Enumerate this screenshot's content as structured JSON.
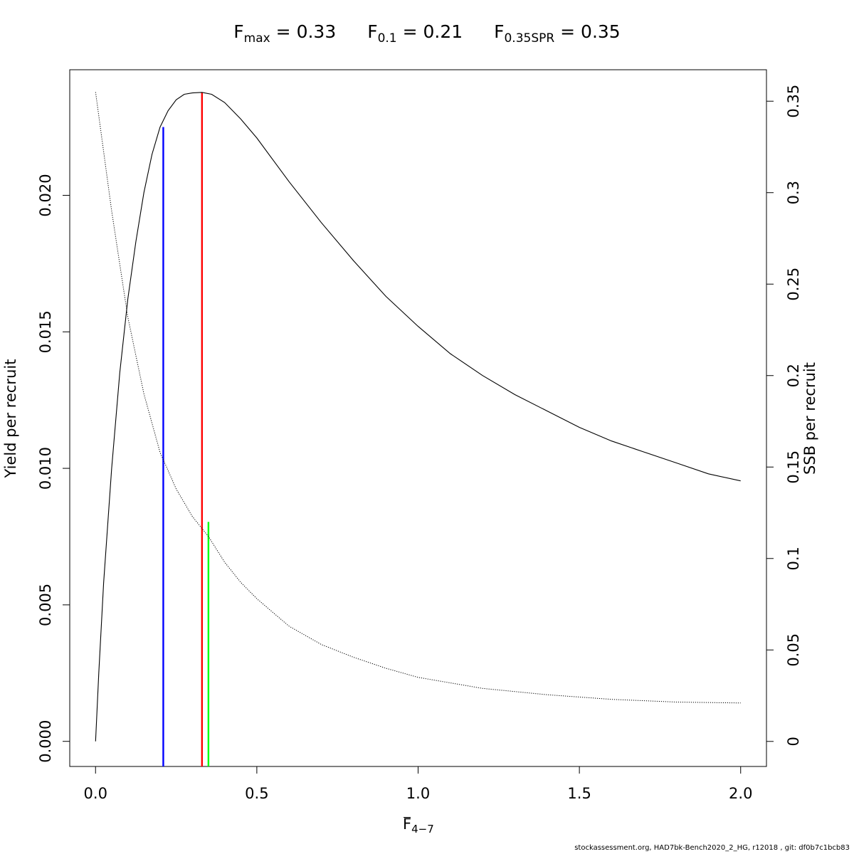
{
  "title": {
    "fmax": {
      "symbol": "F",
      "sub": "max",
      "value": "= 0.33"
    },
    "f01": {
      "symbol": "F",
      "sub": "0.1",
      "value": "= 0.21"
    },
    "fspr": {
      "symbol": "F",
      "sub": "0.35SPR",
      "value": "= 0.35"
    }
  },
  "footer": "stockassessment.org, HAD7bk-Bench2020_2_HG, r12018 , git: df0b7c1bcb83",
  "chart_data": {
    "type": "line",
    "xlabel": {
      "symbol": "F",
      "sub": "4−7"
    },
    "ylabel_left": "Yield per recruit",
    "ylabel_right": "SSB per recruit",
    "xlim": [
      -0.08,
      2.08
    ],
    "ylim_left": [
      -0.00092,
      0.0246
    ],
    "ylim_right": [
      -0.0137,
      0.3672
    ],
    "x_ticks": [
      0.0,
      0.5,
      1.0,
      1.5,
      2.0
    ],
    "x_tick_labels": [
      "0.0",
      "0.5",
      "1.0",
      "1.5",
      "2.0"
    ],
    "y_left_ticks": [
      0.0,
      0.005,
      0.01,
      0.015,
      0.02
    ],
    "y_left_tick_labels": [
      "0.000",
      "0.005",
      "0.010",
      "0.015",
      "0.020"
    ],
    "y_right_ticks": [
      0,
      0.05,
      0.1,
      0.15,
      0.2,
      0.25,
      0.3,
      0.35
    ],
    "y_right_tick_labels": [
      "0",
      "0.05",
      "0.1",
      "0.15",
      "0.2",
      "0.25",
      "0.3",
      "0.35"
    ],
    "series": [
      {
        "axis": "left",
        "style": "solid",
        "color": "#000000",
        "x": [
          0,
          0.01,
          0.025,
          0.05,
          0.075,
          0.1,
          0.125,
          0.15,
          0.175,
          0.2,
          0.225,
          0.25,
          0.275,
          0.3,
          0.33,
          0.36,
          0.4,
          0.45,
          0.5,
          0.55,
          0.6,
          0.7,
          0.8,
          0.9,
          1.0,
          1.1,
          1.2,
          1.3,
          1.4,
          1.5,
          1.6,
          1.7,
          1.8,
          1.9,
          2.0
        ],
        "y": [
          0.0,
          0.0025,
          0.0058,
          0.01,
          0.0135,
          0.0162,
          0.0183,
          0.0201,
          0.0215,
          0.0225,
          0.0231,
          0.0235,
          0.0237,
          0.02375,
          0.02377,
          0.0237,
          0.0234,
          0.0228,
          0.0221,
          0.0213,
          0.0205,
          0.019,
          0.0176,
          0.0163,
          0.0152,
          0.0142,
          0.0134,
          0.0127,
          0.0121,
          0.0115,
          0.011,
          0.0106,
          0.0102,
          0.0098,
          0.00954
        ]
      },
      {
        "axis": "right",
        "style": "dotted",
        "color": "#000000",
        "x": [
          0,
          0.05,
          0.1,
          0.15,
          0.2,
          0.25,
          0.3,
          0.35,
          0.4,
          0.45,
          0.5,
          0.6,
          0.7,
          0.8,
          0.9,
          1.0,
          1.2,
          1.4,
          1.6,
          1.8,
          2.0
        ],
        "y": [
          0.355,
          0.29,
          0.232,
          0.19,
          0.158,
          0.138,
          0.123,
          0.112,
          0.098,
          0.087,
          0.078,
          0.063,
          0.053,
          0.046,
          0.04,
          0.035,
          0.029,
          0.0255,
          0.023,
          0.0215,
          0.021
        ]
      }
    ],
    "reference_lines": [
      {
        "name": "F0.1",
        "x": 0.21,
        "axis": "left",
        "y_end": 0.0225,
        "color": "#0000ff"
      },
      {
        "name": "Fmax",
        "x": 0.33,
        "axis": "left",
        "y_end": 0.02377,
        "color": "#ff0000"
      },
      {
        "name": "F0.35SPR",
        "x": 0.35,
        "axis": "right",
        "y_end": 0.12,
        "color": "#00ff00"
      }
    ]
  }
}
